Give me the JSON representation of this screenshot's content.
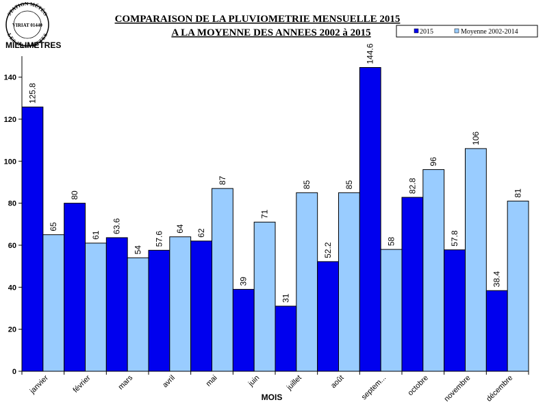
{
  "stamp": {
    "top_text": "STATION MÉTÉO",
    "middle_text": "VIRIAT 01440",
    "bottom_text": "LES BAUVETTES"
  },
  "colors": {
    "series_2015": "#0000EE",
    "series_avg": "#99CCFF",
    "axis": "#000000"
  },
  "chart_data": {
    "type": "bar",
    "title": "COMPARAISON DE LA PLUVIOMETRIE MENSUELLE 2015",
    "subtitle": "A LA MOYENNE DES ANNEES 2002 à 2015",
    "ylabel": "MILLIMETRES",
    "xlabel": "MOIS",
    "ylim": [
      0,
      150
    ],
    "yticks": [
      0,
      20,
      40,
      60,
      80,
      100,
      120,
      140
    ],
    "grid": false,
    "legend_position": "top-right",
    "categories": [
      "janvier",
      "février",
      "mars",
      "avril",
      "mai",
      "juin",
      "juillet",
      "août",
      "septem...",
      "octobre",
      "novembre",
      "décembre"
    ],
    "series": [
      {
        "name": "2015",
        "values": [
          125.8,
          80,
          63.6,
          57.6,
          62,
          39,
          31,
          52.2,
          144.6,
          82.8,
          57.8,
          38.4
        ],
        "labels": [
          "125.8",
          "80",
          "63.6",
          "57.6",
          "62",
          "39",
          "31",
          "52.2",
          "144.6",
          "82.8",
          "57.8",
          "38.4"
        ]
      },
      {
        "name": "Moyenne 2002-2014",
        "values": [
          65,
          61,
          54,
          64,
          87,
          71,
          85,
          85,
          58,
          96,
          106,
          81
        ],
        "labels": [
          "65",
          "61",
          "54",
          "64",
          "87",
          "71",
          "85",
          "85",
          "58",
          "96",
          "106",
          "81"
        ]
      }
    ]
  }
}
